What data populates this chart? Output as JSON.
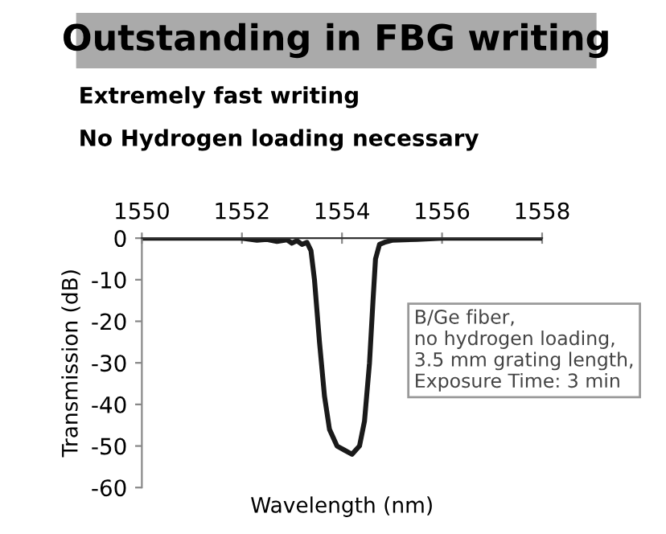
{
  "chart_data": {
    "type": "line",
    "title": "Outstanding in FBG writing",
    "subtitle": "Extremely fast writing",
    "annotations": [
      "No Hydrogen loading necessary",
      "B/Ge fiber,\nno hydrogen loading,\n3.5 mm grating length,\nExposure Time: 3 min"
    ],
    "xlabel": "Wavelength (nm)",
    "ylabel": "Transmission (dB)",
    "series": [
      {
        "color": "#1a1a1a",
        "x": [
          1550,
          1551,
          1552,
          1552.3,
          1552.5,
          1552.7,
          1552.9,
          1553.0,
          1553.1,
          1553.2,
          1553.3,
          1553.38,
          1553.45,
          1553.55,
          1553.65,
          1553.75,
          1553.9,
          1554.05,
          1554.2,
          1554.35,
          1554.45,
          1554.55,
          1554.62,
          1554.67,
          1554.75,
          1554.85,
          1555,
          1555.5,
          1556,
          1557,
          1558
        ],
        "values": [
          0,
          0,
          0,
          -0.5,
          -0.3,
          -0.8,
          -0.4,
          -1.2,
          -0.6,
          -1.5,
          -1,
          -3,
          -10,
          -25,
          -38,
          -46,
          -50,
          -51,
          -52,
          -50,
          -44,
          -30,
          -15,
          -5,
          -1.5,
          -1,
          -0.5,
          -0.3,
          0,
          0,
          0
        ]
      }
    ],
    "xlim": [
      1550,
      1558
    ],
    "xticks": [
      1550,
      1552,
      1554,
      1556,
      1558
    ],
    "ylim": [
      -60,
      0
    ],
    "yticks": [
      0,
      -10,
      -20,
      -30,
      -40,
      -50,
      -60
    ],
    "grid": false,
    "legend": false,
    "marker": "none",
    "line_style": "solid"
  }
}
